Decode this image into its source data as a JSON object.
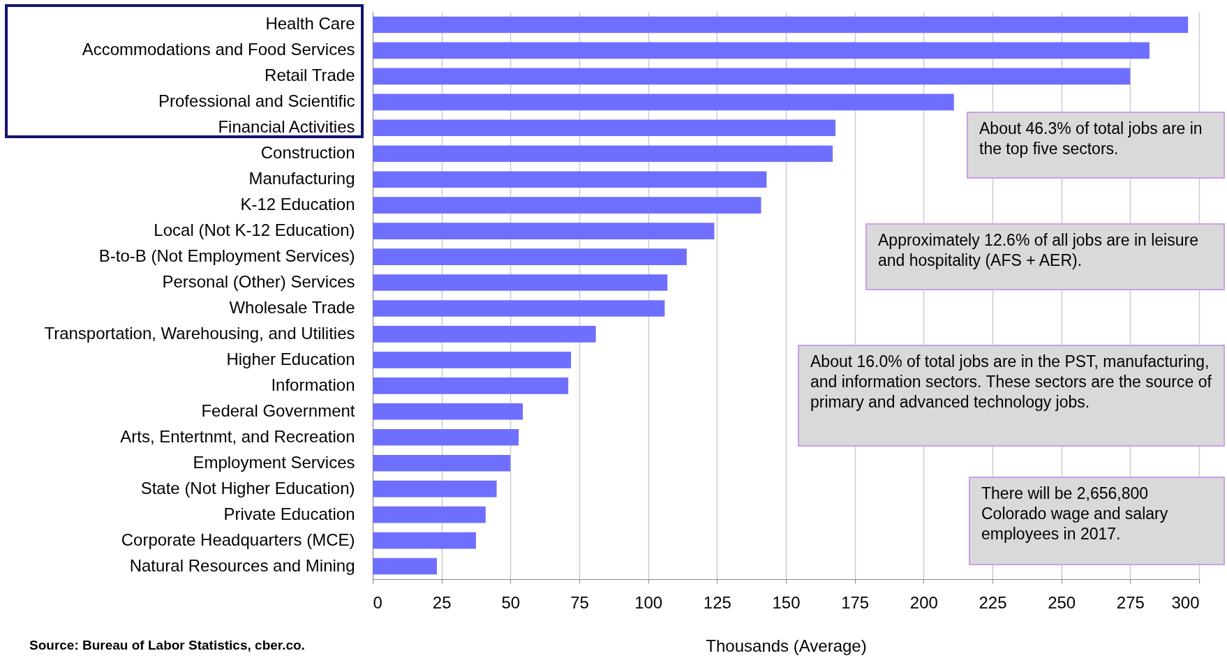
{
  "chart_data": {
    "type": "bar",
    "orientation": "horizontal",
    "categories": [
      "Health Care",
      "Accommodations and Food Services",
      "Retail Trade",
      "Professional and Scientific",
      "Financial Activities",
      "Construction",
      "Manufacturing",
      "K-12 Education",
      "Local (Not K-12 Education)",
      "B-to-B (Not Employment Services)",
      "Personal (Other) Services",
      "Wholesale Trade",
      "Transportation, Warehousing, and Utilities",
      "Higher Education",
      "Information",
      "Federal Government",
      "Arts, Entertnmt, and Recreation",
      "Employment Services",
      "State (Not Higher Education)",
      "Private Education",
      "Corporate Headquarters (MCE)",
      "Natural Resources and Mining"
    ],
    "values": [
      296,
      282,
      275,
      211,
      168,
      167,
      143,
      141,
      124,
      114,
      107,
      106,
      81,
      72,
      71,
      54.5,
      53,
      50,
      45,
      41,
      37.5,
      23.3
    ],
    "color": "#6f6fff",
    "xlabel": "Thousands (Average)",
    "xlim": [
      0,
      300
    ],
    "xticks": [
      0,
      25,
      50,
      75,
      100,
      125,
      150,
      175,
      200,
      225,
      250,
      275,
      300
    ],
    "grid": "x",
    "annotations": [
      "About 46.3% of total jobs are in the top five sectors.",
      "Approximately 12.6% of all jobs are in leisure and hospitality (AFS + AER).",
      "About 16.0% of total jobs are in the PST, manufacturing, and information sectors. These sectors are the source of primary and advanced technology jobs.",
      "There will be 2,656,800 Colorado wage and salary employees in 2017.",
      "Source: Bureau of Labor Statistics, cber.co."
    ]
  }
}
